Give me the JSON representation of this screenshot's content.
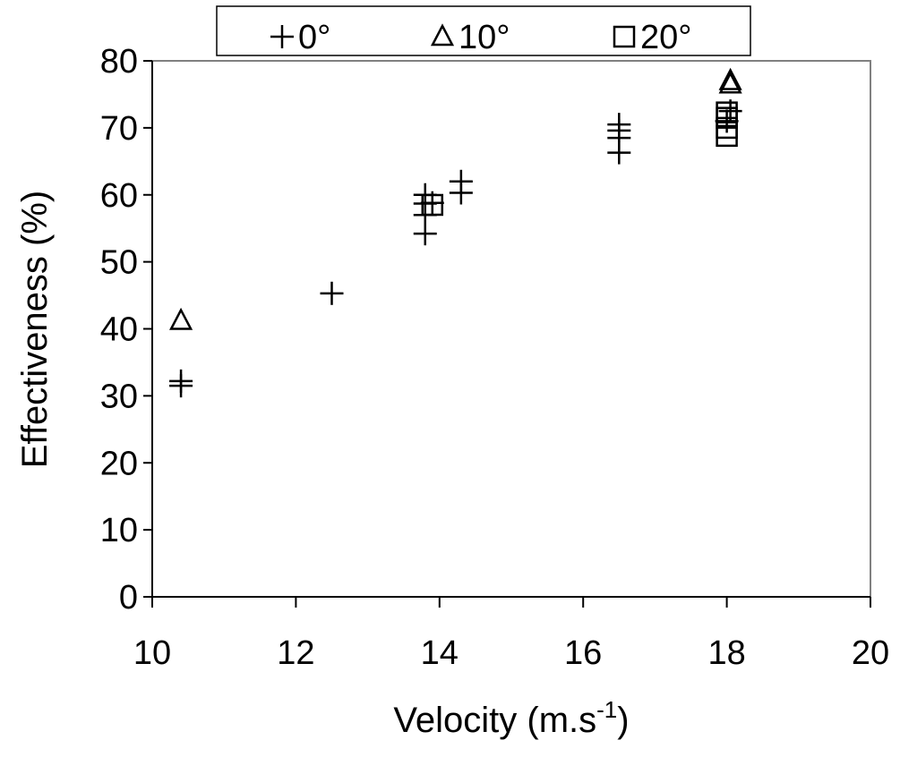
{
  "chart_data": {
    "type": "scatter",
    "title": "",
    "xlabel": "Velocity (m.s",
    "xlabel_superscript": "-1",
    "xlabel_suffix": ")",
    "ylabel": "Effectiveness (%)",
    "xlim": [
      10,
      20
    ],
    "ylim": [
      0,
      80
    ],
    "xticks": [
      "10",
      "12",
      "14",
      "16",
      "18",
      "20"
    ],
    "yticks": [
      "0",
      "10",
      "20",
      "30",
      "40",
      "50",
      "60",
      "70",
      "80"
    ],
    "grid": false,
    "legend_position": "top",
    "series": [
      {
        "name": "0°",
        "marker": "plus",
        "points": [
          {
            "x": 10.4,
            "y": 31.5
          },
          {
            "x": 10.4,
            "y": 32.2
          },
          {
            "x": 12.5,
            "y": 45.3
          },
          {
            "x": 13.8,
            "y": 54.2
          },
          {
            "x": 13.8,
            "y": 57.0
          },
          {
            "x": 13.8,
            "y": 58.7
          },
          {
            "x": 13.8,
            "y": 60.0
          },
          {
            "x": 13.9,
            "y": 58.8
          },
          {
            "x": 14.3,
            "y": 60.3
          },
          {
            "x": 14.3,
            "y": 62.0
          },
          {
            "x": 16.5,
            "y": 66.3
          },
          {
            "x": 16.5,
            "y": 68.5
          },
          {
            "x": 16.5,
            "y": 69.6
          },
          {
            "x": 16.5,
            "y": 70.5
          },
          {
            "x": 18.0,
            "y": 71.0
          },
          {
            "x": 18.05,
            "y": 72.5
          }
        ]
      },
      {
        "name": "10°",
        "marker": "triangle",
        "points": [
          {
            "x": 10.4,
            "y": 41.2
          },
          {
            "x": 18.05,
            "y": 76.5
          },
          {
            "x": 18.05,
            "y": 77.0
          }
        ]
      },
      {
        "name": "20°",
        "marker": "square",
        "points": [
          {
            "x": 13.9,
            "y": 58.5
          },
          {
            "x": 18.0,
            "y": 68.8
          },
          {
            "x": 18.0,
            "y": 70.0
          },
          {
            "x": 18.0,
            "y": 71.5
          },
          {
            "x": 18.0,
            "y": 72.3
          }
        ]
      }
    ]
  }
}
